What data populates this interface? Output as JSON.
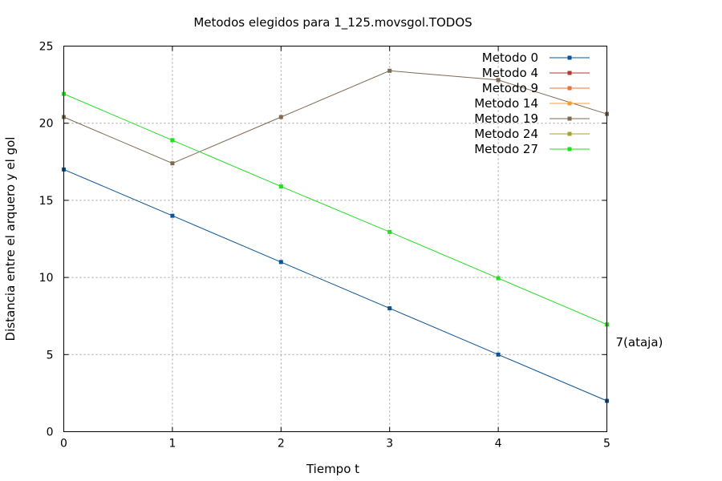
{
  "chart_data": {
    "type": "line",
    "title": "Metodos elegidos para 1_125.movsgol.TODOS",
    "xlabel": "Tiempo t",
    "ylabel": "Distancia entre el arquero y el gol",
    "xlim": [
      0,
      5
    ],
    "ylim": [
      0,
      25
    ],
    "xticks": [
      0,
      1,
      2,
      3,
      4,
      5
    ],
    "yticks": [
      0,
      5,
      10,
      15,
      20,
      25
    ],
    "grid": true,
    "legend_position": "top-right",
    "series": [
      {
        "name": "Metodo 0",
        "color": "#0b5394",
        "x": [
          0,
          1,
          2,
          3,
          4,
          5
        ],
        "y": [
          17,
          14,
          11,
          8,
          5,
          2
        ]
      },
      {
        "name": "Metodo 4",
        "color": "#b03a2e",
        "x": [],
        "y": []
      },
      {
        "name": "Metodo 9",
        "color": "#e8743b",
        "x": [],
        "y": []
      },
      {
        "name": "Metodo 14",
        "color": "#f0a030",
        "x": [],
        "y": []
      },
      {
        "name": "Metodo 19",
        "color": "#7d6a55",
        "x": [
          0,
          1,
          2,
          3,
          4,
          5
        ],
        "y": [
          20.4,
          17.4,
          20.4,
          23.4,
          22.8,
          20.6
        ]
      },
      {
        "name": "Metodo 24",
        "color": "#a8a030",
        "x": [],
        "y": []
      },
      {
        "name": "Metodo 27",
        "color": "#22dd22",
        "x": [
          0,
          1,
          2,
          3,
          4,
          5
        ],
        "y": [
          21.9,
          18.9,
          15.9,
          12.95,
          9.95,
          6.95
        ]
      }
    ],
    "annotations": [
      {
        "text": "7(ataja)",
        "x": 5,
        "y": 5.8
      }
    ]
  }
}
